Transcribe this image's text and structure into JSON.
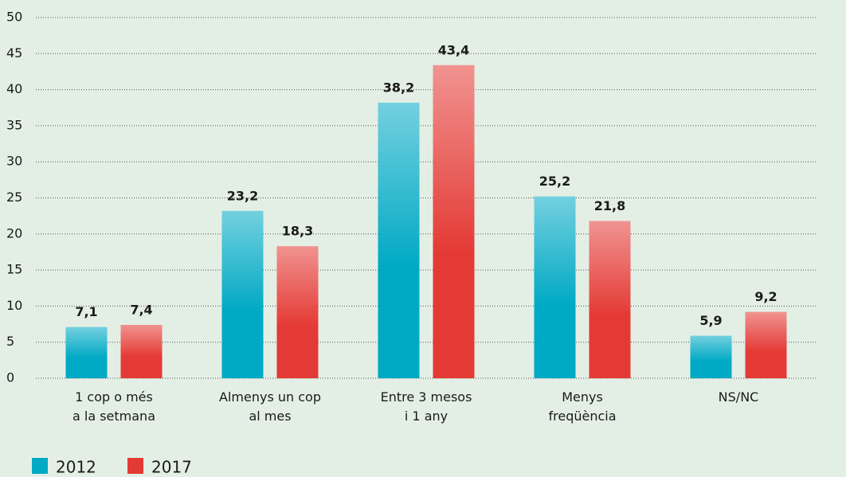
{
  "chart_data": {
    "type": "bar",
    "categories": [
      "1 cop o més\na la setmana",
      "Almenys un cop\nal mes",
      "Entre 3 mesos\ni 1 any",
      "Menys\nfreqüència",
      "NS/NC"
    ],
    "series": [
      {
        "name": "2012",
        "color": "#00a9c4",
        "values": [
          7.1,
          23.2,
          38.2,
          25.2,
          5.9
        ],
        "value_labels": [
          "7,1",
          "23,2",
          "38,2",
          "25,2",
          "5,9"
        ]
      },
      {
        "name": "2017",
        "color": "#e43a35",
        "values": [
          7.4,
          18.3,
          43.4,
          21.8,
          9.2
        ],
        "value_labels": [
          "7,4",
          "18,3",
          "43,4",
          "21,8",
          "9,2"
        ]
      }
    ],
    "ylim": [
      0,
      50
    ],
    "yticks": [
      0,
      5,
      10,
      15,
      20,
      25,
      30,
      35,
      40,
      45,
      50
    ],
    "grid": true,
    "legend": "bottom-left"
  }
}
